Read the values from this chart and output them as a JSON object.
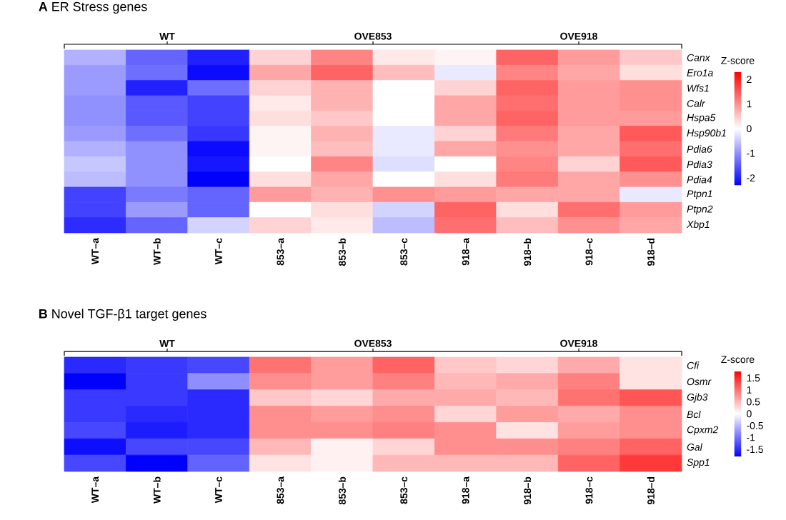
{
  "chart_data": [
    {
      "type": "heatmap",
      "title": "**A** ER Stress genes",
      "clabel": "Z-score",
      "categories": [
        "WT–a",
        "WT–b",
        "WT–c",
        "853–a",
        "853–b",
        "853–c",
        "918–a",
        "918–b",
        "918–c",
        "918–d"
      ],
      "y_categories": [
        "Canx",
        "Ero1a",
        "Wfs1",
        "Calr",
        "Hspa5",
        "Hsp90b1",
        "Pdia6",
        "Pdia3",
        "Pdia4",
        "Ptpn1",
        "Ptpn2",
        "Xbp1"
      ],
      "cells": [
        [
          -0.7,
          -1.4,
          -2.0,
          0.4,
          1.1,
          0.2,
          0.1,
          1.4,
          0.9,
          0.5
        ],
        [
          -0.9,
          -1.3,
          -2.2,
          0.8,
          1.4,
          0.6,
          -0.2,
          1.1,
          0.8,
          0.3
        ],
        [
          -0.9,
          -2.0,
          -1.3,
          0.4,
          0.7,
          0.0,
          0.4,
          1.4,
          0.9,
          1.0
        ],
        [
          -1.0,
          -1.5,
          -1.7,
          0.2,
          0.7,
          0.0,
          0.8,
          1.3,
          0.9,
          1.0
        ],
        [
          -1.0,
          -1.5,
          -1.7,
          0.3,
          0.5,
          0.0,
          0.8,
          1.4,
          0.9,
          0.9
        ],
        [
          -0.9,
          -1.3,
          -1.8,
          0.1,
          0.7,
          -0.2,
          0.4,
          1.2,
          0.8,
          1.5
        ],
        [
          -0.7,
          -1.0,
          -2.2,
          0.1,
          0.6,
          -0.2,
          0.8,
          1.0,
          0.8,
          1.3
        ],
        [
          -0.5,
          -1.0,
          -2.1,
          0.0,
          1.1,
          -0.3,
          0.0,
          1.1,
          0.4,
          1.5
        ],
        [
          -0.6,
          -1.0,
          -2.3,
          0.3,
          0.8,
          0.0,
          0.3,
          1.2,
          0.8,
          1.0
        ],
        [
          -1.7,
          -1.2,
          -1.4,
          0.9,
          0.7,
          1.0,
          0.9,
          0.8,
          0.8,
          -0.2
        ],
        [
          -1.7,
          -0.9,
          -1.4,
          0.0,
          0.3,
          -0.4,
          1.4,
          0.3,
          1.3,
          0.9
        ],
        [
          -1.9,
          -1.4,
          -0.4,
          0.4,
          0.2,
          -0.6,
          1.3,
          0.6,
          1.0,
          0.8
        ]
      ],
      "clim": [
        -2.3,
        2.3
      ],
      "cticks": [
        -2,
        -1,
        0,
        1,
        2
      ],
      "annotations": [
        "WT",
        "OVE853",
        "OVE918"
      ]
    },
    {
      "type": "heatmap",
      "title": "**B** Novel TGF-β1 target genes",
      "clabel": "Z-score",
      "categories": [
        "WT–a",
        "WT–b",
        "WT–c",
        "853–a",
        "853–b",
        "853–c",
        "918–a",
        "918–b",
        "918–c",
        "918–d"
      ],
      "y_categories": [
        "Cfi",
        "Osmr",
        "Gjb3",
        "Bcl",
        "Cpxm2",
        "Gal",
        "Spp1"
      ],
      "cells": [
        [
          -1.5,
          -1.4,
          -1.3,
          1.0,
          0.7,
          1.1,
          0.4,
          0.3,
          0.6,
          0.2
        ],
        [
          -1.8,
          -1.4,
          -0.8,
          0.8,
          0.7,
          0.9,
          0.5,
          0.6,
          0.9,
          0.2
        ],
        [
          -1.4,
          -1.4,
          -1.5,
          0.4,
          0.3,
          0.6,
          0.6,
          0.5,
          1.0,
          1.2
        ],
        [
          -1.4,
          -1.5,
          -1.5,
          0.8,
          0.7,
          0.8,
          0.3,
          0.7,
          0.6,
          0.8
        ],
        [
          -1.3,
          -1.6,
          -1.5,
          0.8,
          0.8,
          0.9,
          0.8,
          0.2,
          0.7,
          0.8
        ],
        [
          -1.7,
          -1.3,
          -1.3,
          0.5,
          0.1,
          0.3,
          0.8,
          0.8,
          0.9,
          1.1
        ],
        [
          -1.3,
          -1.8,
          -1.1,
          0.2,
          0.1,
          0.5,
          0.5,
          0.5,
          1.1,
          1.4
        ]
      ],
      "clim": [
        -1.8,
        1.8
      ],
      "cticks": [
        -1.5,
        -1,
        -0.5,
        0,
        0.5,
        1,
        1.5
      ],
      "annotations": [
        "WT",
        "OVE853",
        "OVE918"
      ]
    }
  ]
}
